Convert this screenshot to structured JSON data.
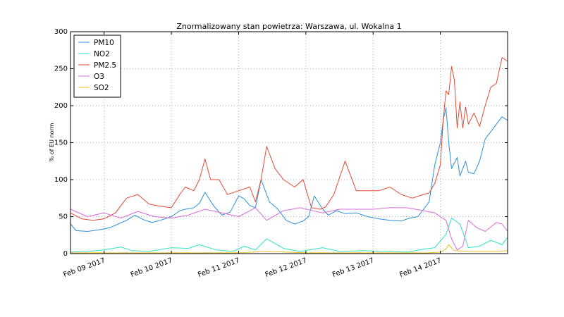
{
  "chart_data": {
    "type": "line",
    "title": "Znormalizowany stan powietrza: Warszawa, ul. Wokalna 1",
    "xlabel": "",
    "ylabel": "% of EU norm",
    "ylim": [
      0,
      300
    ],
    "yticks": [
      "0",
      "50",
      "100",
      "150",
      "200",
      "250",
      "300"
    ],
    "xlim": [
      "2017-02-08T12:00",
      "2017-02-15T00:00"
    ],
    "xticks": [
      {
        "x": "2017-02-09T00:00",
        "label": "Feb 09 2017"
      },
      {
        "x": "2017-02-10T00:00",
        "label": "Feb 10 2017"
      },
      {
        "x": "2017-02-11T00:00",
        "label": "Feb 11 2017"
      },
      {
        "x": "2017-02-12T00:00",
        "label": "Feb 12 2017"
      },
      {
        "x": "2017-02-13T00:00",
        "label": "Feb 13 2017"
      },
      {
        "x": "2017-02-14T00:00",
        "label": "Feb 14 2017"
      }
    ],
    "grid": true,
    "legend_position": "top-left",
    "series": [
      {
        "name": "PM10",
        "color": "#2b8fd9",
        "x": [
          "2017-02-08T12:00",
          "2017-02-08T14:00",
          "2017-02-08T18:00",
          "2017-02-08T22:00",
          "2017-02-09T02:00",
          "2017-02-09T05:00",
          "2017-02-09T08:00",
          "2017-02-09T11:00",
          "2017-02-09T14:00",
          "2017-02-09T17:00",
          "2017-02-09T20:00",
          "2017-02-10T00:00",
          "2017-02-10T03:00",
          "2017-02-10T05:00",
          "2017-02-10T08:00",
          "2017-02-10T10:00",
          "2017-02-10T12:00",
          "2017-02-10T15:00",
          "2017-02-10T18:00",
          "2017-02-10T21:00",
          "2017-02-11T00:00",
          "2017-02-11T02:00",
          "2017-02-11T04:00",
          "2017-02-11T06:00",
          "2017-02-11T08:00",
          "2017-02-11T11:00",
          "2017-02-11T14:00",
          "2017-02-11T17:00",
          "2017-02-11T20:00",
          "2017-02-11T23:00",
          "2017-02-12T01:00",
          "2017-02-12T03:00",
          "2017-02-12T06:00",
          "2017-02-12T08:00",
          "2017-02-12T11:00",
          "2017-02-12T14:00",
          "2017-02-12T18:00",
          "2017-02-12T22:00",
          "2017-02-13T02:00",
          "2017-02-13T06:00",
          "2017-02-13T10:00",
          "2017-02-13T13:00",
          "2017-02-13T16:00",
          "2017-02-13T18:00",
          "2017-02-13T20:00",
          "2017-02-13T22:00",
          "2017-02-14T00:00",
          "2017-02-14T01:00",
          "2017-02-14T02:00",
          "2017-02-14T03:00",
          "2017-02-14T04:00",
          "2017-02-14T06:00",
          "2017-02-14T07:00",
          "2017-02-14T09:00",
          "2017-02-14T10:00",
          "2017-02-14T12:00",
          "2017-02-14T14:00",
          "2017-02-14T16:00",
          "2017-02-14T18:00",
          "2017-02-14T20:00",
          "2017-02-14T22:00",
          "2017-02-15T00:00"
        ],
        "values": [
          40,
          31,
          30,
          32,
          35,
          40,
          45,
          52,
          46,
          42,
          45,
          50,
          58,
          60,
          62,
          68,
          83,
          65,
          52,
          56,
          78,
          74,
          65,
          62,
          100,
          70,
          60,
          45,
          40,
          44,
          50,
          78,
          60,
          52,
          58,
          54,
          55,
          50,
          47,
          45,
          44,
          48,
          50,
          60,
          70,
          120,
          150,
          180,
          197,
          150,
          115,
          130,
          105,
          125,
          110,
          108,
          125,
          155,
          165,
          175,
          185,
          180
        ]
      },
      {
        "name": "NO2",
        "color": "#2de3c0",
        "x": [
          "2017-02-08T12:00",
          "2017-02-08T18:00",
          "2017-02-09T00:00",
          "2017-02-09T06:00",
          "2017-02-09T10:00",
          "2017-02-09T16:00",
          "2017-02-10T00:00",
          "2017-02-10T06:00",
          "2017-02-10T10:00",
          "2017-02-10T16:00",
          "2017-02-10T22:00",
          "2017-02-11T02:00",
          "2017-02-11T06:00",
          "2017-02-11T10:00",
          "2017-02-11T16:00",
          "2017-02-11T22:00",
          "2017-02-12T06:00",
          "2017-02-12T12:00",
          "2017-02-12T20:00",
          "2017-02-13T04:00",
          "2017-02-13T12:00",
          "2017-02-13T18:00",
          "2017-02-13T22:00",
          "2017-02-14T02:00",
          "2017-02-14T04:00",
          "2017-02-14T07:00",
          "2017-02-14T10:00",
          "2017-02-14T14:00",
          "2017-02-14T18:00",
          "2017-02-14T22:00",
          "2017-02-15T00:00"
        ],
        "values": [
          2,
          3,
          5,
          9,
          4,
          3,
          8,
          7,
          12,
          5,
          3,
          10,
          5,
          20,
          7,
          3,
          8,
          3,
          4,
          3,
          2,
          6,
          8,
          26,
          48,
          40,
          8,
          10,
          18,
          12,
          22
        ]
      },
      {
        "name": "PM2.5",
        "color": "#e24a33",
        "x": [
          "2017-02-08T12:00",
          "2017-02-08T16:00",
          "2017-02-08T20:00",
          "2017-02-09T00:00",
          "2017-02-09T04:00",
          "2017-02-09T08:00",
          "2017-02-09T12:00",
          "2017-02-09T16:00",
          "2017-02-09T20:00",
          "2017-02-10T00:00",
          "2017-02-10T03:00",
          "2017-02-10T05:00",
          "2017-02-10T08:00",
          "2017-02-10T10:00",
          "2017-02-10T12:00",
          "2017-02-10T14:00",
          "2017-02-10T17:00",
          "2017-02-10T20:00",
          "2017-02-11T00:00",
          "2017-02-11T04:00",
          "2017-02-11T06:00",
          "2017-02-11T08:00",
          "2017-02-11T10:00",
          "2017-02-11T13:00",
          "2017-02-11T16:00",
          "2017-02-11T20:00",
          "2017-02-11T23:00",
          "2017-02-12T02:00",
          "2017-02-12T05:00",
          "2017-02-12T07:00",
          "2017-02-12T10:00",
          "2017-02-12T14:00",
          "2017-02-12T18:00",
          "2017-02-12T22:00",
          "2017-02-13T02:00",
          "2017-02-13T06:00",
          "2017-02-13T10:00",
          "2017-02-13T14:00",
          "2017-02-13T18:00",
          "2017-02-13T20:00",
          "2017-02-13T22:00",
          "2017-02-14T00:00",
          "2017-02-14T01:00",
          "2017-02-14T02:00",
          "2017-02-14T03:00",
          "2017-02-14T04:00",
          "2017-02-14T05:00",
          "2017-02-14T06:00",
          "2017-02-14T07:00",
          "2017-02-14T08:00",
          "2017-02-14T09:00",
          "2017-02-14T10:00",
          "2017-02-14T12:00",
          "2017-02-14T14:00",
          "2017-02-14T16:00",
          "2017-02-14T18:00",
          "2017-02-14T20:00",
          "2017-02-14T22:00",
          "2017-02-15T00:00"
        ],
        "values": [
          55,
          47,
          45,
          47,
          55,
          75,
          80,
          67,
          64,
          62,
          80,
          90,
          85,
          100,
          128,
          100,
          100,
          80,
          85,
          90,
          70,
          100,
          145,
          115,
          100,
          90,
          100,
          62,
          60,
          63,
          80,
          125,
          85,
          85,
          85,
          90,
          80,
          75,
          80,
          82,
          95,
          120,
          180,
          220,
          215,
          253,
          235,
          170,
          205,
          170,
          198,
          175,
          190,
          172,
          200,
          225,
          230,
          265,
          260
        ]
      },
      {
        "name": "O3",
        "color": "#d86bdc",
        "x": [
          "2017-02-08T12:00",
          "2017-02-08T18:00",
          "2017-02-09T00:00",
          "2017-02-09T06:00",
          "2017-02-09T12:00",
          "2017-02-09T18:00",
          "2017-02-10T00:00",
          "2017-02-10T06:00",
          "2017-02-10T12:00",
          "2017-02-10T18:00",
          "2017-02-11T00:00",
          "2017-02-11T06:00",
          "2017-02-11T10:00",
          "2017-02-11T16:00",
          "2017-02-11T22:00",
          "2017-02-12T06:00",
          "2017-02-12T12:00",
          "2017-02-12T18:00",
          "2017-02-13T00:00",
          "2017-02-13T06:00",
          "2017-02-13T12:00",
          "2017-02-13T18:00",
          "2017-02-13T22:00",
          "2017-02-14T02:00",
          "2017-02-14T04:00",
          "2017-02-14T06:00",
          "2017-02-14T08:00",
          "2017-02-14T10:00",
          "2017-02-14T13:00",
          "2017-02-14T16:00",
          "2017-02-14T20:00",
          "2017-02-14T22:00",
          "2017-02-15T00:00"
        ],
        "values": [
          60,
          50,
          55,
          48,
          57,
          50,
          48,
          52,
          60,
          55,
          50,
          62,
          45,
          58,
          62,
          55,
          60,
          60,
          60,
          62,
          62,
          58,
          55,
          45,
          20,
          5,
          10,
          45,
          35,
          30,
          42,
          40,
          30
        ]
      },
      {
        "name": "SO2",
        "color": "#e8c12a",
        "x": [
          "2017-02-08T12:00",
          "2017-02-09T00:00",
          "2017-02-10T00:00",
          "2017-02-11T00:00",
          "2017-02-11T10:00",
          "2017-02-12T00:00",
          "2017-02-13T00:00",
          "2017-02-13T20:00",
          "2017-02-14T00:00",
          "2017-02-14T02:00",
          "2017-02-14T03:00",
          "2017-02-14T05:00",
          "2017-02-14T10:00",
          "2017-02-14T20:00",
          "2017-02-15T00:00"
        ],
        "values": [
          1,
          1,
          1,
          1,
          3,
          1,
          1,
          1,
          2,
          6,
          12,
          4,
          3,
          3,
          4
        ]
      }
    ]
  }
}
